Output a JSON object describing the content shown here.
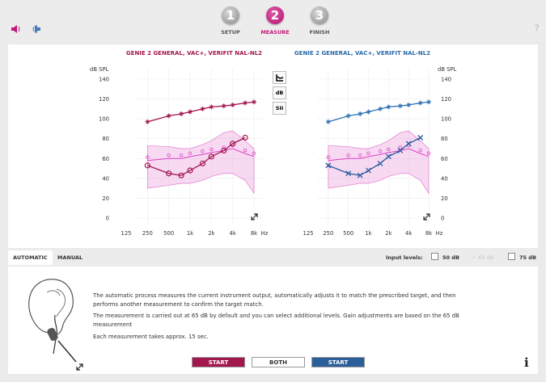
{
  "header": {
    "steps": [
      {
        "number": "1",
        "label": "SETUP",
        "active": false
      },
      {
        "number": "2",
        "label": "MEASURE",
        "active": true
      },
      {
        "number": "3",
        "label": "FINISH",
        "active": false
      }
    ],
    "help": "?"
  },
  "charts": [
    {
      "type": "line",
      "title": "GENIE 2 GENERAL, VAC+, VERIFIT NAL-NL2",
      "y_label": "dB SPL",
      "x_unit": "Hz",
      "xlog": true,
      "xlim": [
        125,
        8000
      ],
      "xticks": [
        125,
        250,
        500,
        {
          "value": 1000,
          "label": "1k"
        },
        {
          "value": 2000,
          "label": "2k"
        },
        {
          "value": 4000,
          "label": "4k"
        },
        {
          "value": 8000,
          "label": "8k"
        }
      ],
      "ylim": [
        0,
        140
      ],
      "yticks": [
        0,
        20,
        40,
        60,
        80,
        100,
        120,
        140
      ],
      "y_axis_side": "left",
      "grid": true,
      "band": {
        "color": "#e27ad0",
        "x": [
          250,
          500,
          750,
          1000,
          1500,
          2000,
          3000,
          4000,
          6000,
          8000
        ],
        "lower": [
          30,
          33,
          35,
          35,
          38,
          42,
          45,
          45,
          38,
          25
        ],
        "upper": [
          73,
          72,
          70,
          70,
          74,
          78,
          86,
          88,
          78,
          70
        ]
      },
      "series": [
        {
          "color": "#e040c8",
          "marker": "ring",
          "x": [
            250,
            500,
            750,
            1000,
            1500,
            2000,
            3000,
            4000,
            6000,
            8000
          ],
          "values": [
            58,
            60,
            60,
            62,
            64,
            66,
            68,
            70,
            65,
            62
          ]
        },
        {
          "color": "#a3174f",
          "marker": "asterisk",
          "x": [
            250,
            500,
            750,
            1000,
            1500,
            2000,
            3000,
            4000,
            6000,
            8000
          ],
          "values": [
            97,
            103,
            105,
            107,
            110,
            112,
            113,
            114,
            116,
            117
          ]
        },
        {
          "color": "#a3174f",
          "marker": "circle",
          "x": [
            250,
            500,
            750,
            1000,
            1500,
            2000,
            3000,
            4000,
            6000
          ],
          "values": [
            53,
            45,
            43,
            48,
            55,
            62,
            68,
            75,
            81
          ]
        }
      ]
    },
    {
      "type": "line",
      "title": "GENIE 2 GENERAL, VAC+, VERIFIT NAL-NL2",
      "y_label": "dB SPL",
      "x_unit": "Hz",
      "xlog": true,
      "xlim": [
        125,
        8000
      ],
      "xticks": [
        125,
        250,
        500,
        {
          "value": 1000,
          "label": "1k"
        },
        {
          "value": 2000,
          "label": "2k"
        },
        {
          "value": 4000,
          "label": "4k"
        },
        {
          "value": 8000,
          "label": "8k"
        }
      ],
      "ylim": [
        0,
        140
      ],
      "yticks": [
        0,
        20,
        40,
        60,
        80,
        100,
        120,
        140
      ],
      "y_axis_side": "right",
      "grid": true,
      "band": {
        "color": "#e27ad0",
        "x": [
          250,
          500,
          750,
          1000,
          1500,
          2000,
          3000,
          4000,
          6000,
          8000
        ],
        "lower": [
          30,
          33,
          35,
          35,
          38,
          42,
          45,
          45,
          38,
          25
        ],
        "upper": [
          73,
          72,
          70,
          70,
          74,
          78,
          86,
          88,
          78,
          70
        ]
      },
      "series": [
        {
          "color": "#e040c8",
          "marker": "ring",
          "x": [
            250,
            500,
            750,
            1000,
            1500,
            2000,
            3000,
            4000,
            6000,
            8000
          ],
          "values": [
            58,
            60,
            60,
            62,
            64,
            66,
            68,
            70,
            65,
            62
          ]
        },
        {
          "color": "#2f73b4",
          "marker": "asterisk",
          "x": [
            250,
            500,
            750,
            1000,
            1500,
            2000,
            3000,
            4000,
            6000,
            8000
          ],
          "values": [
            97,
            103,
            105,
            107,
            110,
            112,
            113,
            114,
            116,
            117
          ]
        },
        {
          "color": "#2a5a9e",
          "marker": "cross",
          "x": [
            250,
            500,
            750,
            1000,
            1500,
            2000,
            3000,
            4000,
            6000
          ],
          "values": [
            53,
            45,
            43,
            48,
            55,
            62,
            68,
            75,
            81
          ]
        }
      ]
    }
  ],
  "chart_tools": [
    "dB",
    "SII"
  ],
  "tabs": [
    {
      "label": "AUTOMATIC",
      "active": true
    },
    {
      "label": "MANUAL",
      "active": false
    }
  ],
  "input_levels": {
    "label": "Input levels:",
    "options": [
      {
        "label": "50 dB",
        "checked": false
      },
      {
        "label": "65 dB",
        "checked": true
      },
      {
        "label": "75 dB",
        "checked": false
      }
    ]
  },
  "description": [
    "The automatic process measures the current instrument output, automatically adjusts it to match the prescribed target, and then performs another measurement to confirm the target match.",
    "The measurement is carried out at 65 dB by default and you can select additional levels. Gain adjustments are based on the 65 dB measurement",
    "Each measurement takes approx. 15 sec."
  ],
  "buttons": [
    {
      "label": "START",
      "color": "#a3174f"
    },
    {
      "label": "BOTH",
      "color": "#ffffff"
    },
    {
      "label": "START",
      "color": "#2a5f9a"
    }
  ],
  "info": "i"
}
